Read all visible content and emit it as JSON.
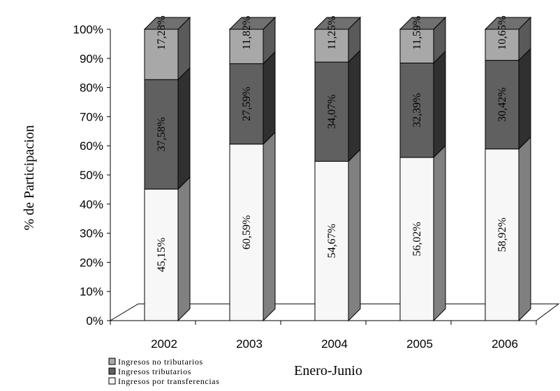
{
  "chart_data": {
    "type": "bar",
    "stacked": true,
    "percent_stacked": true,
    "three_d": true,
    "categories": [
      "2002",
      "2003",
      "2004",
      "2005",
      "2006"
    ],
    "series": [
      {
        "name": "Ingresos por transferencias",
        "values": [
          45.15,
          60.59,
          54.67,
          56.02,
          58.92
        ],
        "labels": [
          "45,15%",
          "60,59%",
          "54,67%",
          "56,02%",
          "58,92%"
        ],
        "color": "#f7f7f7"
      },
      {
        "name": "Ingresos tributarios",
        "values": [
          37.58,
          27.59,
          34.07,
          32.39,
          30.42
        ],
        "labels": [
          "37,58%",
          "27,59%",
          "34,07%",
          "32,39%",
          "30,42%"
        ],
        "color": "#606060"
      },
      {
        "name": "Ingresos no tributarios",
        "values": [
          17.28,
          11.82,
          11.25,
          11.59,
          10.65
        ],
        "labels": [
          "17,28%",
          "11,82%",
          "11,25%",
          "11,59%",
          "10,65%"
        ],
        "color": "#a8a8a8"
      }
    ],
    "xlabel": "Enero-Junio",
    "ylabel": "% de Participacion",
    "ylim": [
      0,
      100
    ],
    "yticks": [
      "0%",
      "10%",
      "20%",
      "30%",
      "40%",
      "50%",
      "60%",
      "70%",
      "80%",
      "90%",
      "100%"
    ],
    "legend": {
      "position": "bottom-left",
      "entries": [
        "Ingresos no tributarios",
        "Ingresos tributarios",
        "Ingresos por transferencias"
      ]
    },
    "grid": false
  }
}
